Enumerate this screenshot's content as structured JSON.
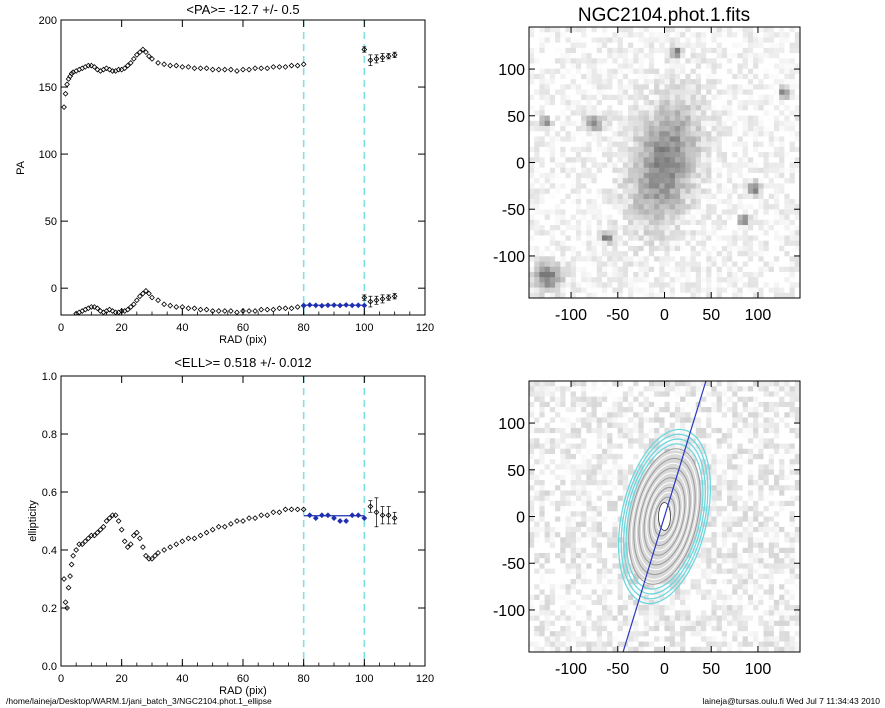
{
  "figure": {
    "image_title": "NGC2104.phot.1.fits",
    "footer_left": "/home/laineja/Desktop/WARM.1/jani_batch_3/NGC2104.phot.1_ellipse",
    "footer_right": "laineja@tursas.oulu.fi  Wed Jul  7 11:34:43 2010"
  },
  "colors": {
    "axis": "#000000",
    "fit_band": "#7fe0e6",
    "fit_points": "#1f2fb0",
    "contours": "#6fd6de",
    "ink": "#000000"
  },
  "chart_data": [
    {
      "id": "pa",
      "type": "scatter",
      "title": "<PA>= -12.7 +/-   0.5",
      "xlabel": "RAD (pix)",
      "ylabel": "PA",
      "xlim": [
        0,
        120
      ],
      "ylim": [
        -20,
        200
      ],
      "xticks": [
        0,
        20,
        40,
        60,
        80,
        100,
        120
      ],
      "yticks": [
        0,
        50,
        100,
        150,
        200
      ],
      "fit_range": [
        80,
        100
      ],
      "fit_value": -12.7,
      "series": [
        {
          "name": "PA profile (wrapped)",
          "x": [
            1,
            1.5,
            2,
            2.5,
            3,
            3.5,
            4,
            5,
            6,
            7,
            8,
            9,
            10,
            11,
            12,
            13,
            14,
            15,
            16,
            17,
            18,
            19,
            20,
            21,
            22,
            23,
            24,
            25,
            26,
            27,
            28,
            29,
            30,
            32,
            34,
            36,
            38,
            40,
            42,
            44,
            46,
            48,
            50,
            52,
            54,
            56,
            58,
            60,
            62,
            64,
            66,
            68,
            70,
            72,
            74,
            76,
            78,
            80
          ],
          "y": [
            135,
            145,
            152,
            156,
            158,
            160,
            161,
            162,
            163,
            164,
            165,
            166,
            166,
            165,
            163,
            162,
            163,
            164,
            163,
            162,
            162,
            163,
            163,
            164,
            166,
            168,
            171,
            174,
            176,
            178,
            176,
            173,
            171,
            168,
            167,
            166,
            166,
            165,
            165,
            164,
            164,
            164,
            163,
            163,
            163,
            163,
            162,
            163,
            163,
            164,
            164,
            164,
            165,
            165,
            165,
            166,
            166,
            167
          ]
        },
        {
          "name": "PA profile (raw)",
          "x": [
            5,
            6,
            7,
            8,
            9,
            10,
            11,
            12,
            13,
            14,
            15,
            16,
            17,
            18,
            19,
            20,
            21,
            22,
            23,
            24,
            25,
            26,
            27,
            28,
            29,
            30,
            32,
            34,
            36,
            38,
            40,
            42,
            44,
            46,
            48,
            50,
            52,
            54,
            56,
            58,
            60,
            62,
            64,
            66,
            68,
            70,
            72,
            74,
            76,
            78,
            80
          ],
          "y": [
            -19,
            -18,
            -17,
            -16,
            -15,
            -14,
            -14,
            -15,
            -17,
            -18,
            -17,
            -16,
            -17,
            -18,
            -18,
            -17,
            -17,
            -16,
            -14,
            -12,
            -9,
            -6,
            -4,
            -2,
            -4,
            -7,
            -9,
            -12,
            -13,
            -14,
            -14,
            -15,
            -15,
            -16,
            -16,
            -17,
            -17,
            -17,
            -17,
            -18,
            -17,
            -17,
            -17,
            -16,
            -16,
            -16,
            -15,
            -15,
            -15,
            -14,
            -13
          ]
        },
        {
          "name": "Fit region",
          "x": [
            80,
            82,
            84,
            86,
            88,
            90,
            92,
            94,
            96,
            98,
            100
          ],
          "y": [
            -13,
            -12.5,
            -12.8,
            -13.1,
            -12.7,
            -12.6,
            -12.9,
            -12.5,
            -12.8,
            -12.7,
            -12.9
          ]
        },
        {
          "name": "Outer points",
          "x": [
            100,
            102,
            104,
            106,
            108,
            110
          ],
          "y": [
            -7,
            -10,
            -9,
            -8,
            -7,
            -6
          ],
          "err": [
            2,
            4,
            3,
            3,
            2,
            2
          ]
        },
        {
          "name": "Outer points (wrapped)",
          "x": [
            100,
            102,
            104,
            106,
            108,
            110
          ],
          "y": [
            178,
            170,
            171,
            172,
            173,
            174
          ],
          "err": [
            2,
            4,
            3,
            3,
            2,
            2
          ]
        }
      ]
    },
    {
      "id": "ell",
      "type": "scatter",
      "title": "<ELL>= 0.518 +/-  0.012",
      "xlabel": "RAD (pix)",
      "ylabel": "ellipticity",
      "xlim": [
        0,
        120
      ],
      "ylim": [
        0,
        1
      ],
      "xticks": [
        0,
        20,
        40,
        60,
        80,
        100,
        120
      ],
      "yticks": [
        0.0,
        0.2,
        0.4,
        0.6,
        0.8,
        1.0
      ],
      "ytick_labels": [
        "0.0",
        "0.2",
        "0.4",
        "0.6",
        "0.8",
        "1.0"
      ],
      "fit_range": [
        80,
        100
      ],
      "fit_value": 0.518,
      "series": [
        {
          "name": "Ellipticity profile",
          "x": [
            1,
            1.5,
            2,
            2.5,
            3,
            3.5,
            4,
            5,
            6,
            7,
            8,
            9,
            10,
            11,
            12,
            13,
            14,
            15,
            16,
            17,
            18,
            19,
            20,
            21,
            22,
            23,
            24,
            25,
            26,
            27,
            28,
            29,
            30,
            31,
            32,
            34,
            36,
            38,
            40,
            42,
            44,
            46,
            48,
            50,
            52,
            54,
            56,
            58,
            60,
            62,
            64,
            66,
            68,
            70,
            72,
            74,
            76,
            78,
            80
          ],
          "y": [
            0.3,
            0.22,
            0.2,
            0.27,
            0.31,
            0.35,
            0.38,
            0.4,
            0.42,
            0.42,
            0.43,
            0.44,
            0.45,
            0.45,
            0.46,
            0.47,
            0.48,
            0.5,
            0.51,
            0.52,
            0.52,
            0.5,
            0.47,
            0.43,
            0.41,
            0.42,
            0.45,
            0.46,
            0.44,
            0.41,
            0.38,
            0.37,
            0.37,
            0.38,
            0.39,
            0.4,
            0.41,
            0.42,
            0.43,
            0.44,
            0.44,
            0.45,
            0.46,
            0.47,
            0.48,
            0.48,
            0.49,
            0.5,
            0.5,
            0.51,
            0.51,
            0.52,
            0.52,
            0.53,
            0.53,
            0.54,
            0.54,
            0.54,
            0.54
          ]
        },
        {
          "name": "Fit region",
          "x": [
            82,
            84,
            86,
            88,
            90,
            92,
            94,
            96,
            98,
            100
          ],
          "y": [
            0.52,
            0.51,
            0.52,
            0.52,
            0.51,
            0.5,
            0.5,
            0.52,
            0.52,
            0.51
          ]
        },
        {
          "name": "Outer points",
          "x": [
            102,
            104,
            106,
            108,
            110
          ],
          "y": [
            0.55,
            0.53,
            0.52,
            0.52,
            0.51
          ],
          "err": [
            0.02,
            0.05,
            0.03,
            0.03,
            0.02
          ]
        }
      ]
    },
    {
      "id": "img-top",
      "type": "heatmap",
      "title": "NGC2104.phot.1.fits",
      "xlim": [
        -145,
        145
      ],
      "ylim": [
        -145,
        145
      ],
      "xticks": [
        -100,
        -50,
        0,
        50,
        100
      ],
      "yticks": [
        -100,
        -50,
        0,
        50,
        100
      ],
      "galaxy": {
        "x0": 0,
        "y0": 0,
        "sigma_major": 45,
        "sigma_minor": 22,
        "pa_deg": -12.7
      },
      "sources": [
        {
          "x": -125,
          "y": -122,
          "size": 10
        },
        {
          "x": -75,
          "y": 42,
          "size": 6
        },
        {
          "x": 95,
          "y": -28,
          "size": 5
        },
        {
          "x": 84,
          "y": -62,
          "size": 4
        },
        {
          "x": -62,
          "y": -80,
          "size": 4
        },
        {
          "x": 12,
          "y": 118,
          "size": 4
        },
        {
          "x": 128,
          "y": 74,
          "size": 4
        },
        {
          "x": -128,
          "y": 44,
          "size": 4
        }
      ]
    },
    {
      "id": "img-bottom",
      "type": "heatmap",
      "title": "",
      "xlim": [
        -145,
        145
      ],
      "ylim": [
        -145,
        145
      ],
      "xticks": [
        -100,
        -50,
        0,
        50,
        100
      ],
      "yticks": [
        -100,
        -50,
        0,
        50,
        100
      ],
      "contours": {
        "count": 18,
        "max_semimajor": 95,
        "ellipticity": 0.52,
        "pa_deg": -12.7
      },
      "major_axis_line": {
        "angle_deg": -17,
        "x0": 0,
        "y0": 0
      }
    }
  ]
}
